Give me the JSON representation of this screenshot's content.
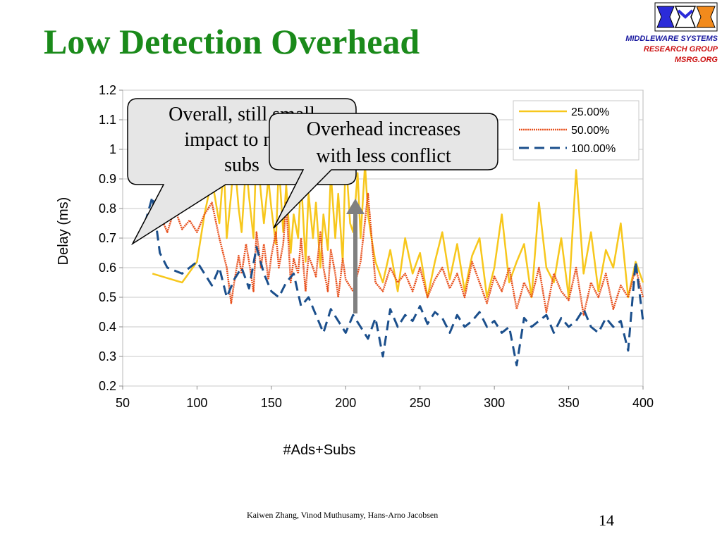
{
  "slide": {
    "title": "Low Detection Overhead",
    "org_line1": "MIDDLEWARE SYSTEMS",
    "org_line2": "RESEARCH GROUP",
    "org_line3": "MSRG.ORG",
    "footer": "Kaiwen Zhang, Vinod Muthusamy, Hans-Arno Jacobsen",
    "page_number": "14"
  },
  "callouts": [
    {
      "lines": [
        "Overall, still small",
        "impact to non-",
        "subs"
      ]
    },
    {
      "lines": [
        "Overhead increases",
        "with less conflict"
      ]
    }
  ],
  "colors": {
    "title": "#1a8a1a",
    "series_25": "#f7c71c",
    "series_50": "#e8501c",
    "series_100": "#1b4f8c"
  },
  "chart_data": {
    "type": "line",
    "xlabel": "#Ads+Subs",
    "ylabel": "Delay  (ms)",
    "xlim": [
      50,
      400
    ],
    "ylim": [
      0.2,
      1.2
    ],
    "xticks": [
      50,
      100,
      150,
      200,
      250,
      300,
      350,
      400
    ],
    "yticks": [
      0.2,
      0.3,
      0.4,
      0.5,
      0.6,
      0.7,
      0.8,
      0.9,
      1,
      1.1,
      1.2
    ],
    "ytick_labels": [
      "0.2",
      "0.3",
      "0.4",
      "0.5",
      "0.6",
      "0.7",
      "0.8",
      "0.9",
      "1",
      "1.1",
      "1.2"
    ],
    "grid": true,
    "legend_position": "top-right",
    "series": [
      {
        "name": "25.00%",
        "style": "solid",
        "x": [
          70,
          90,
          100,
          105,
          110,
          115,
          118,
          120,
          123,
          125,
          128,
          130,
          133,
          135,
          138,
          140,
          143,
          145,
          148,
          150,
          153,
          155,
          158,
          160,
          163,
          165,
          168,
          170,
          173,
          175,
          178,
          180,
          183,
          185,
          188,
          190,
          193,
          195,
          198,
          200,
          203,
          205,
          208,
          210,
          213,
          215,
          218,
          220,
          225,
          230,
          235,
          240,
          245,
          250,
          255,
          260,
          265,
          270,
          275,
          280,
          285,
          290,
          295,
          300,
          305,
          310,
          315,
          320,
          325,
          330,
          335,
          340,
          345,
          350,
          355,
          360,
          365,
          370,
          375,
          380,
          385,
          390,
          395,
          400
        ],
        "y": [
          0.58,
          0.55,
          0.62,
          0.78,
          0.9,
          0.75,
          0.95,
          0.7,
          0.85,
          0.98,
          0.8,
          0.72,
          0.95,
          0.84,
          0.7,
          1.02,
          0.85,
          0.75,
          0.9,
          0.8,
          0.68,
          0.95,
          0.72,
          0.88,
          0.65,
          0.78,
          0.7,
          0.9,
          0.62,
          0.85,
          0.7,
          0.82,
          0.6,
          0.78,
          0.66,
          0.92,
          0.7,
          0.85,
          0.62,
          0.98,
          0.75,
          0.72,
          0.92,
          0.7,
          0.95,
          0.78,
          0.68,
          0.62,
          0.55,
          0.66,
          0.52,
          0.7,
          0.58,
          0.65,
          0.5,
          0.62,
          0.72,
          0.56,
          0.68,
          0.52,
          0.64,
          0.7,
          0.5,
          0.6,
          0.78,
          0.55,
          0.62,
          0.68,
          0.5,
          0.82,
          0.6,
          0.55,
          0.7,
          0.5,
          0.93,
          0.58,
          0.72,
          0.52,
          0.66,
          0.6,
          0.75,
          0.5,
          0.62,
          0.55
        ]
      },
      {
        "name": "50.00%",
        "style": "dotted",
        "x": [
          75,
          80,
          85,
          90,
          95,
          100,
          105,
          110,
          115,
          120,
          123,
          125,
          128,
          130,
          133,
          135,
          138,
          140,
          143,
          145,
          148,
          150,
          153,
          155,
          158,
          160,
          163,
          165,
          168,
          170,
          173,
          175,
          178,
          180,
          183,
          185,
          188,
          190,
          193,
          195,
          198,
          200,
          205,
          210,
          215,
          220,
          225,
          230,
          235,
          240,
          245,
          250,
          255,
          260,
          265,
          270,
          275,
          280,
          285,
          290,
          295,
          300,
          305,
          310,
          315,
          320,
          325,
          330,
          335,
          340,
          345,
          350,
          355,
          360,
          365,
          370,
          375,
          380,
          385,
          390,
          395,
          400
        ],
        "y": [
          0.78,
          0.72,
          0.8,
          0.73,
          0.76,
          0.72,
          0.78,
          0.82,
          0.7,
          0.6,
          0.48,
          0.55,
          0.64,
          0.58,
          0.68,
          0.62,
          0.52,
          0.72,
          0.6,
          0.68,
          0.56,
          0.64,
          0.72,
          0.6,
          0.68,
          0.82,
          0.55,
          0.63,
          0.58,
          0.7,
          0.52,
          0.64,
          0.6,
          0.57,
          0.72,
          0.6,
          0.52,
          0.66,
          0.58,
          0.5,
          0.63,
          0.56,
          0.52,
          0.62,
          0.85,
          0.55,
          0.52,
          0.6,
          0.55,
          0.58,
          0.52,
          0.6,
          0.5,
          0.56,
          0.6,
          0.53,
          0.58,
          0.5,
          0.62,
          0.55,
          0.48,
          0.57,
          0.52,
          0.6,
          0.46,
          0.55,
          0.5,
          0.6,
          0.45,
          0.58,
          0.52,
          0.49,
          0.6,
          0.44,
          0.55,
          0.5,
          0.58,
          0.46,
          0.54,
          0.5,
          0.6,
          0.5
        ]
      },
      {
        "name": "100.00%",
        "style": "dashed",
        "x": [
          65,
          70,
          75,
          80,
          90,
          100,
          105,
          110,
          115,
          120,
          125,
          130,
          135,
          140,
          145,
          150,
          155,
          160,
          165,
          170,
          175,
          180,
          185,
          190,
          195,
          200,
          205,
          210,
          215,
          220,
          225,
          230,
          235,
          240,
          245,
          250,
          255,
          260,
          265,
          270,
          275,
          280,
          285,
          290,
          295,
          300,
          305,
          310,
          315,
          320,
          325,
          330,
          335,
          340,
          345,
          350,
          355,
          360,
          365,
          370,
          375,
          380,
          385,
          390,
          395,
          400
        ],
        "y": [
          0.75,
          0.84,
          0.65,
          0.6,
          0.58,
          0.62,
          0.58,
          0.54,
          0.6,
          0.5,
          0.56,
          0.6,
          0.53,
          0.67,
          0.58,
          0.52,
          0.5,
          0.55,
          0.58,
          0.47,
          0.5,
          0.44,
          0.38,
          0.46,
          0.42,
          0.38,
          0.44,
          0.4,
          0.36,
          0.43,
          0.3,
          0.46,
          0.4,
          0.44,
          0.42,
          0.47,
          0.41,
          0.45,
          0.43,
          0.38,
          0.44,
          0.4,
          0.42,
          0.45,
          0.4,
          0.42,
          0.38,
          0.4,
          0.27,
          0.43,
          0.4,
          0.42,
          0.44,
          0.38,
          0.43,
          0.4,
          0.42,
          0.46,
          0.4,
          0.38,
          0.43,
          0.4,
          0.42,
          0.32,
          0.62,
          0.42
        ]
      }
    ]
  }
}
